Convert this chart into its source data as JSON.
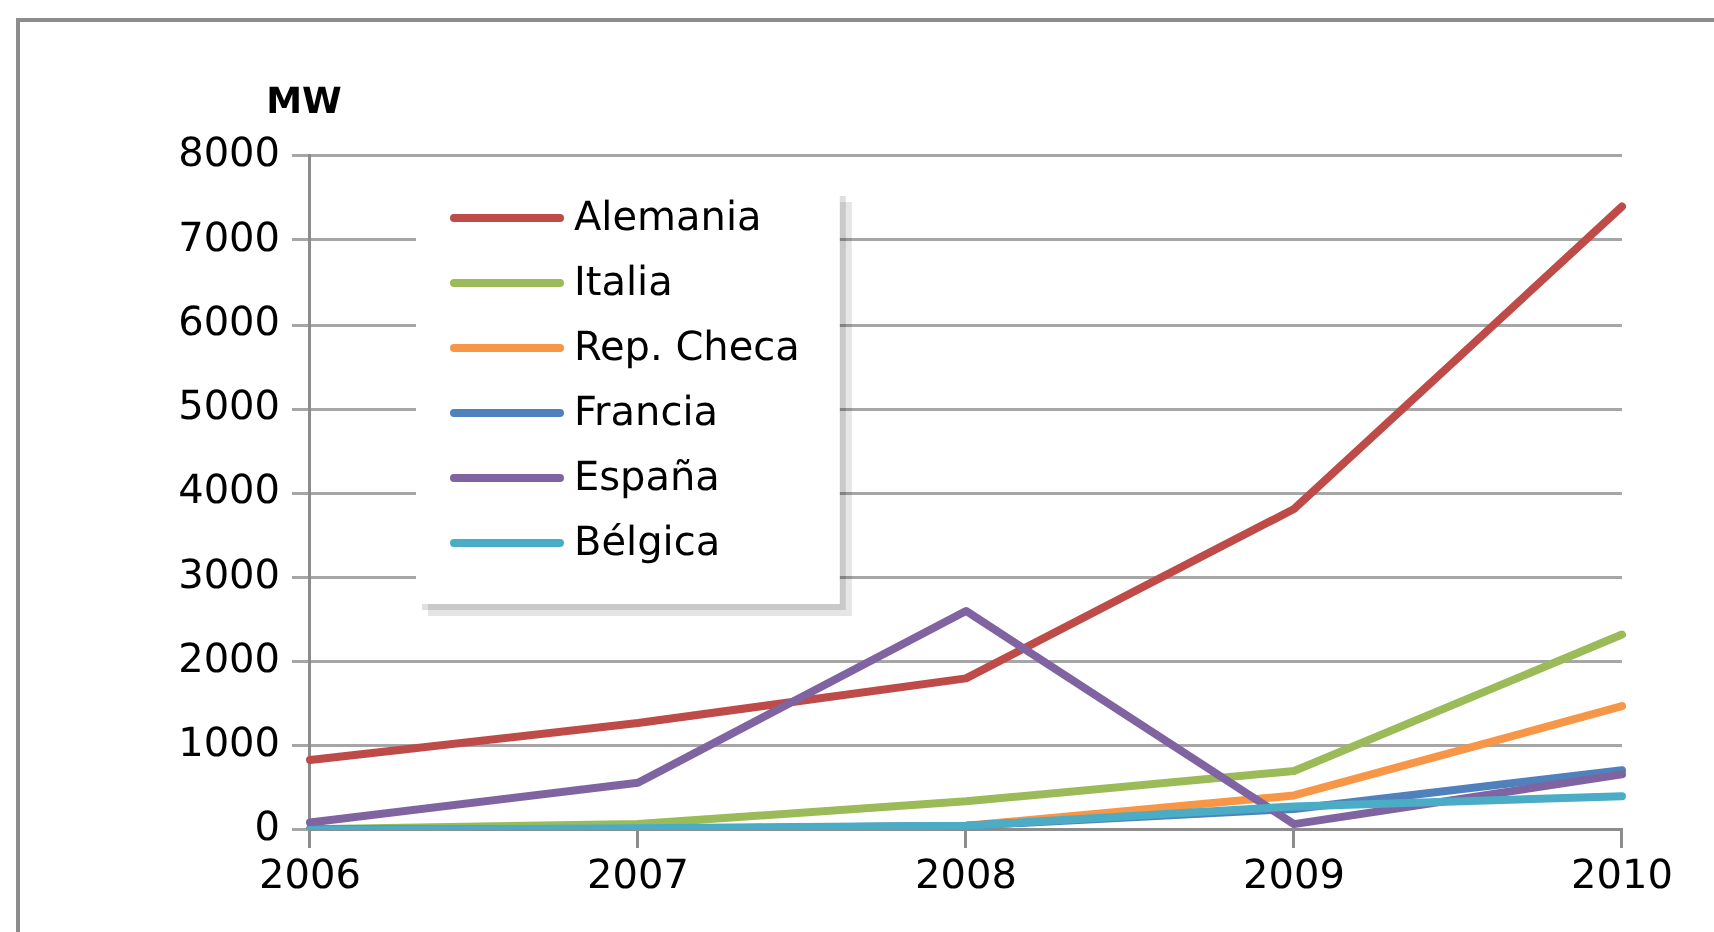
{
  "chart_data": {
    "type": "line",
    "ylabel": "MW",
    "categories": [
      "2006",
      "2007",
      "2008",
      "2009",
      "2010"
    ],
    "series": [
      {
        "name": "Alemania",
        "color": "#be4b48",
        "values": [
          830,
          1270,
          1800,
          3810,
          7400
        ]
      },
      {
        "name": "Italia",
        "color": "#9bbb59",
        "values": [
          10,
          70,
          340,
          700,
          2320
        ]
      },
      {
        "name": "Rep. Checa",
        "color": "#f79646",
        "values": [
          0,
          10,
          50,
          410,
          1470
        ]
      },
      {
        "name": "Francia",
        "color": "#4f81bd",
        "values": [
          10,
          10,
          50,
          250,
          710
        ]
      },
      {
        "name": "España",
        "color": "#8064a2",
        "values": [
          90,
          560,
          2600,
          70,
          660
        ]
      },
      {
        "name": "Bélgica",
        "color": "#4bacc6",
        "values": [
          0,
          20,
          50,
          280,
          400
        ]
      }
    ],
    "ylim": [
      0,
      8000
    ],
    "yticks": [
      0,
      1000,
      2000,
      3000,
      4000,
      5000,
      6000,
      7000,
      8000
    ],
    "grid": "y",
    "legend": "top left",
    "marker": "none",
    "line_style": "solid"
  }
}
